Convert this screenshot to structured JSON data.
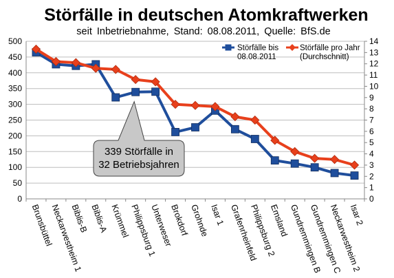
{
  "chart_data": {
    "type": "line",
    "title": "Störfälle in deutschen Atomkraftwerken",
    "subtitle": "seit  Inbetriebnahme,  Stand:  08.08.2011,  Quelle:  BfS.de",
    "categories": [
      "Brunsbüttel",
      "Neckarwestheim 1",
      "Biblis-B",
      "Biblis-A",
      "Krümmel",
      "Philippsburg 1",
      "Unterweser",
      "Brokdorf",
      "Grohnde",
      "Isar 1",
      "Grafenrheinfeld",
      "Philippsburg 2",
      "Emsland",
      "Gundremmingen B",
      "Gundremmingen C",
      "Neckarwestheim 2",
      "Isar 2"
    ],
    "series": [
      {
        "name_lines": [
          "Störfälle bis",
          "08.08.2011"
        ],
        "axis": "left",
        "color": "#1f4e9c",
        "values": [
          465,
          427,
          422,
          427,
          322,
          339,
          340,
          212,
          227,
          280,
          221,
          190,
          122,
          112,
          100,
          82,
          74
        ]
      },
      {
        "name_lines": [
          "Störfälle pro Jahr",
          "(Durchschnitt)"
        ],
        "axis": "right",
        "color": "#e8401c",
        "values": [
          13.3,
          12.2,
          12.1,
          11.6,
          11.5,
          10.6,
          10.4,
          8.4,
          8.3,
          8.2,
          7.3,
          7.0,
          5.2,
          4.2,
          3.6,
          3.5,
          3.0
        ]
      }
    ],
    "y_left": {
      "min": 0,
      "max": 500,
      "step": 50,
      "ticks": [
        "0",
        "50",
        "100",
        "150",
        "200",
        "250",
        "300",
        "350",
        "400",
        "450",
        "500"
      ]
    },
    "y_right": {
      "min": 0,
      "max": 14,
      "step": 1,
      "ticks": [
        "0",
        "1",
        "2",
        "3",
        "4",
        "5",
        "6",
        "7",
        "8",
        "9",
        "10",
        "11",
        "12",
        "13",
        "14"
      ]
    },
    "grid": "horizontal",
    "legend": "top-right",
    "callout": {
      "lines": [
        "339 Störfälle in",
        "32 Betriebsjahren"
      ],
      "target": "Philippsburg 1"
    }
  }
}
